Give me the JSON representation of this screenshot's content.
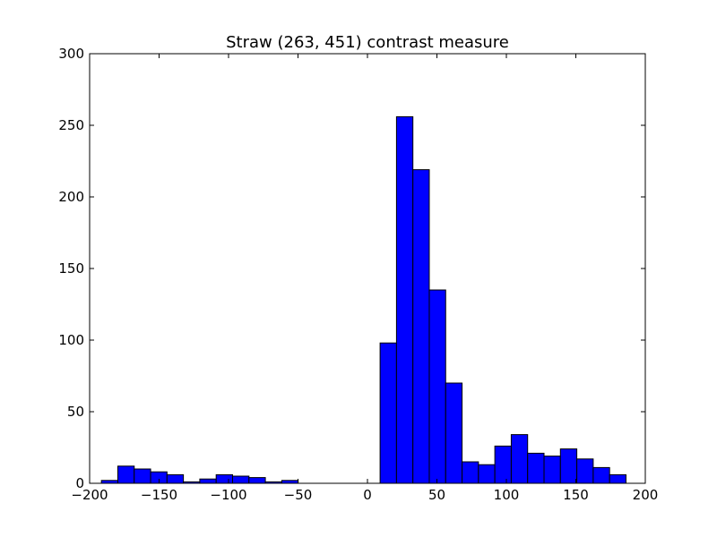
{
  "chart_data": {
    "type": "bar",
    "title": "Straw (263, 451) contrast measure",
    "xlabel": "",
    "ylabel": "",
    "xlim": [
      -200,
      200
    ],
    "ylim": [
      0,
      300
    ],
    "grid": false,
    "legend": "none",
    "xticks": [
      -200,
      -150,
      -100,
      -50,
      0,
      50,
      100,
      150,
      200
    ],
    "xtick_labels": [
      "−200",
      "−150",
      "−100",
      "−50",
      "0",
      "50",
      "100",
      "150",
      "200"
    ],
    "yticks": [
      0,
      50,
      100,
      150,
      200,
      250,
      300
    ],
    "ytick_labels": [
      "0",
      "50",
      "100",
      "150",
      "200",
      "250",
      "300"
    ],
    "bar_color": "#0000ff",
    "edge_color": "#000000",
    "bins": [
      {
        "x0": -191.5,
        "x1": -179.7,
        "value": 2
      },
      {
        "x0": -179.7,
        "x1": -167.9,
        "value": 12
      },
      {
        "x0": -167.9,
        "x1": -156.1,
        "value": 10
      },
      {
        "x0": -156.1,
        "x1": -144.3,
        "value": 8
      },
      {
        "x0": -144.3,
        "x1": -132.5,
        "value": 6
      },
      {
        "x0": -132.5,
        "x1": -120.7,
        "value": 1
      },
      {
        "x0": -120.7,
        "x1": -108.9,
        "value": 3
      },
      {
        "x0": -108.9,
        "x1": -97.1,
        "value": 6
      },
      {
        "x0": -97.1,
        "x1": -85.3,
        "value": 5
      },
      {
        "x0": -85.3,
        "x1": -73.5,
        "value": 4
      },
      {
        "x0": -73.5,
        "x1": -61.7,
        "value": 1
      },
      {
        "x0": -61.7,
        "x1": -49.9,
        "value": 2
      },
      {
        "x0": -49.9,
        "x1": -38.1,
        "value": 0
      },
      {
        "x0": -38.1,
        "x1": -26.3,
        "value": 0
      },
      {
        "x0": -26.3,
        "x1": -14.5,
        "value": 0
      },
      {
        "x0": -14.5,
        "x1": -2.7,
        "value": 0
      },
      {
        "x0": -2.7,
        "x1": 9.1,
        "value": 0
      },
      {
        "x0": 9.1,
        "x1": 20.9,
        "value": 98
      },
      {
        "x0": 20.9,
        "x1": 32.7,
        "value": 256
      },
      {
        "x0": 32.7,
        "x1": 44.5,
        "value": 219
      },
      {
        "x0": 44.5,
        "x1": 56.3,
        "value": 135
      },
      {
        "x0": 56.3,
        "x1": 68.1,
        "value": 70
      },
      {
        "x0": 68.1,
        "x1": 79.9,
        "value": 15
      },
      {
        "x0": 79.9,
        "x1": 91.7,
        "value": 13
      },
      {
        "x0": 91.7,
        "x1": 103.5,
        "value": 26
      },
      {
        "x0": 103.5,
        "x1": 115.3,
        "value": 34
      },
      {
        "x0": 115.3,
        "x1": 127.1,
        "value": 21
      },
      {
        "x0": 127.1,
        "x1": 138.9,
        "value": 19
      },
      {
        "x0": 138.9,
        "x1": 150.7,
        "value": 24
      },
      {
        "x0": 150.7,
        "x1": 162.5,
        "value": 17
      },
      {
        "x0": 162.5,
        "x1": 174.3,
        "value": 11
      },
      {
        "x0": 174.3,
        "x1": 186.1,
        "value": 6
      }
    ]
  }
}
